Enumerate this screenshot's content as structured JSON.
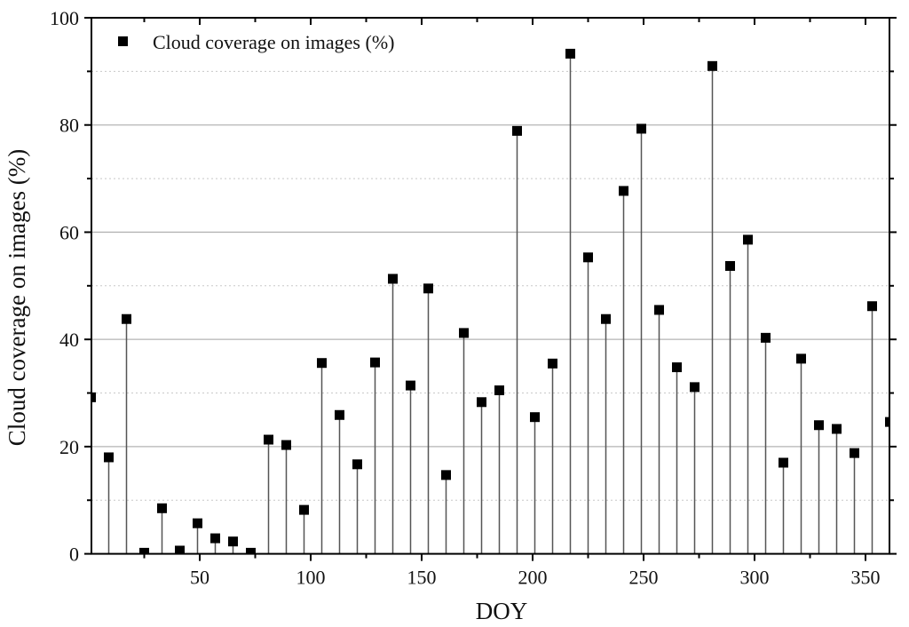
{
  "chart_data": {
    "type": "scatter",
    "subtype": "stem (drop lines to x-axis)",
    "title": "",
    "xlabel": "DOY",
    "ylabel": "Cloud coverage on images (%)",
    "xlim": [
      1,
      361
    ],
    "ylim": [
      0,
      100
    ],
    "x_ticks": [
      50,
      100,
      150,
      200,
      250,
      300,
      350
    ],
    "y_ticks": [
      0,
      20,
      40,
      60,
      80,
      100
    ],
    "y_minor_ticks": [
      10,
      30,
      50,
      70,
      90
    ],
    "grid": {
      "major_y": "solid gray",
      "minor_y": "dotted gray",
      "x": false
    },
    "legend": {
      "position": "top-left inside",
      "entries": [
        "Cloud coverage on images (%)"
      ]
    },
    "series": [
      {
        "name": "Cloud coverage on images (%)",
        "marker": "square",
        "color": "#000000",
        "x": [
          1,
          9,
          17,
          25,
          33,
          41,
          49,
          57,
          65,
          73,
          81,
          89,
          97,
          105,
          113,
          121,
          129,
          137,
          145,
          153,
          161,
          169,
          177,
          185,
          193,
          201,
          209,
          217,
          225,
          233,
          241,
          249,
          257,
          265,
          273,
          281,
          289,
          297,
          305,
          313,
          321,
          329,
          337,
          345,
          353,
          361
        ],
        "values": [
          29.2,
          18.0,
          43.8,
          0.2,
          8.5,
          0.6,
          5.7,
          2.9,
          2.3,
          0.2,
          21.3,
          20.3,
          8.2,
          35.6,
          25.9,
          16.7,
          35.7,
          51.3,
          31.4,
          49.5,
          14.7,
          41.2,
          28.3,
          30.5,
          78.9,
          25.5,
          35.5,
          93.3,
          55.3,
          43.8,
          67.7,
          79.3,
          45.5,
          34.8,
          31.1,
          91.0,
          53.7,
          58.6,
          40.3,
          17.0,
          36.4,
          24.0,
          23.3,
          18.8,
          46.2,
          24.6
        ]
      }
    ]
  },
  "labels": {
    "xlabel": "DOY",
    "ylabel": "Cloud coverage on images (%)",
    "legend": "Cloud coverage on images (%)"
  },
  "colors": {
    "marker": "#000000",
    "stem": "#555555",
    "axis": "#000000",
    "grid_major": "#b4b4b4",
    "grid_minor": "#c8c8c8"
  }
}
